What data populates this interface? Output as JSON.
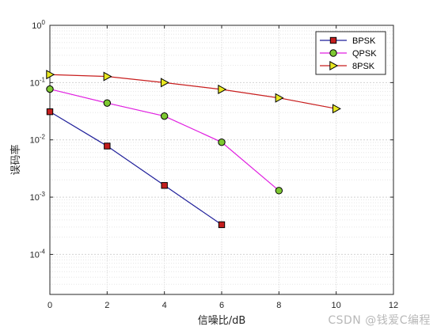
{
  "chart_data": {
    "type": "line",
    "xlabel": "信噪比/dB",
    "ylabel": "误码率",
    "xlim": [
      0,
      12
    ],
    "ylim": [
      2e-05,
      1
    ],
    "yscale": "log",
    "xticks": [
      0,
      2,
      4,
      6,
      8,
      10,
      12
    ],
    "xtick_labels": [
      "0",
      "2",
      "4",
      "6",
      "8",
      "10",
      "12"
    ],
    "yticks": [
      0.0001,
      0.001,
      0.01,
      0.1,
      1
    ],
    "ytick_labels": [
      {
        "base": "10",
        "exp": "-4"
      },
      {
        "base": "10",
        "exp": "-3"
      },
      {
        "base": "10",
        "exp": "-2"
      },
      {
        "base": "10",
        "exp": "-1"
      },
      {
        "base": "10",
        "exp": "0"
      }
    ],
    "grid": true,
    "legend_position": "top-right",
    "series": [
      {
        "name": "BPSK",
        "color": "#1f1f9a",
        "marker": "square",
        "marker_color": "#c41e1e",
        "x": [
          0,
          2,
          4,
          6
        ],
        "y": [
          0.031,
          0.0078,
          0.0016,
          0.00033
        ]
      },
      {
        "name": "QPSK",
        "color": "#e01ee0",
        "marker": "circle",
        "marker_color": "#7ec832",
        "x": [
          0,
          2,
          4,
          6,
          8
        ],
        "y": [
          0.077,
          0.044,
          0.026,
          0.0091,
          0.0013
        ]
      },
      {
        "name": "8PSK",
        "color": "#c81e1e",
        "marker": "triangle-right",
        "marker_color": "#e8e820",
        "x": [
          0,
          2,
          4,
          6,
          8,
          10
        ],
        "y": [
          0.138,
          0.128,
          0.1,
          0.076,
          0.054,
          0.035
        ]
      }
    ]
  },
  "watermark": "CSDN @钱爱C编程"
}
